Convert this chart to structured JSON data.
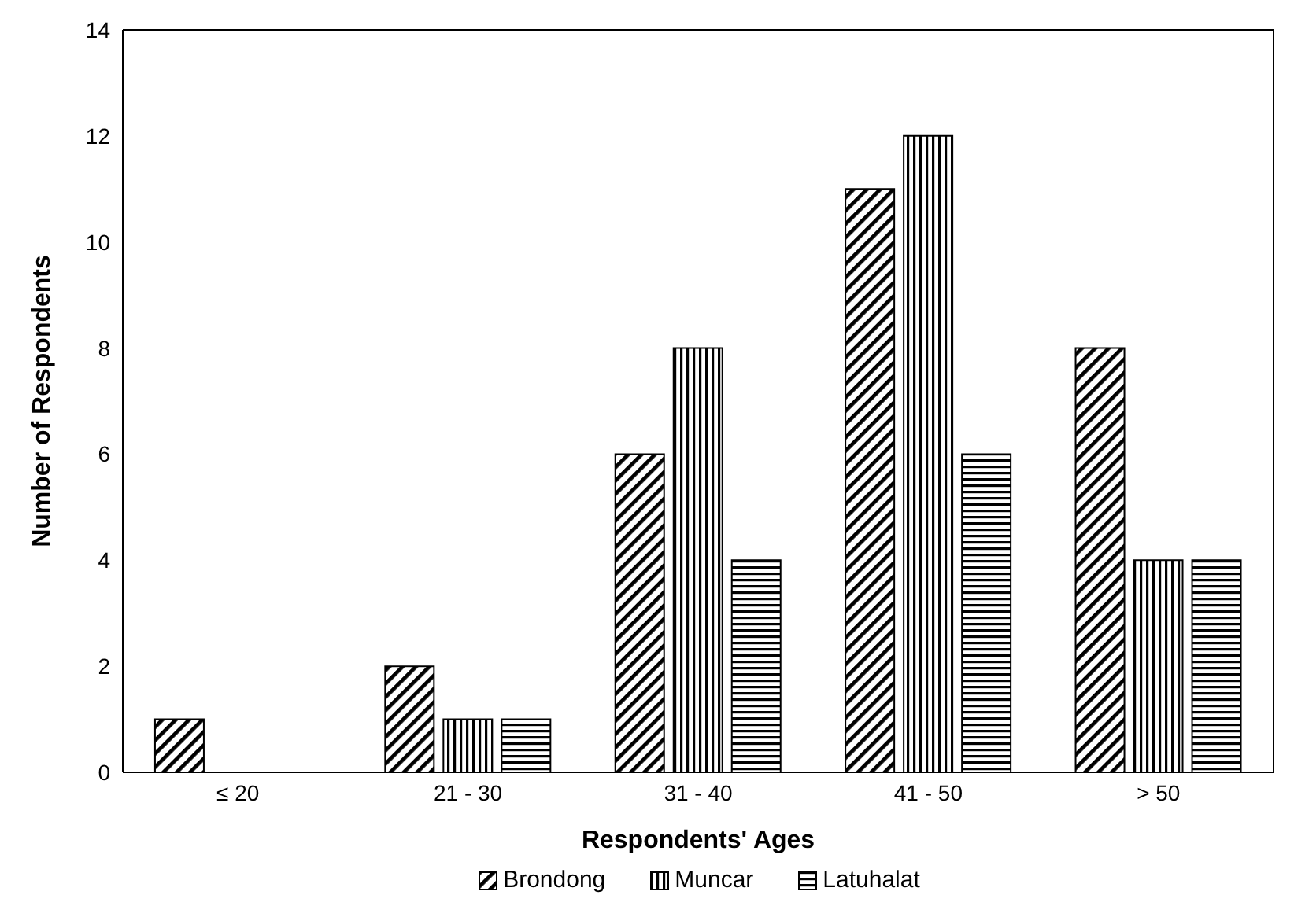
{
  "chart_data": {
    "type": "bar",
    "xlabel": "Respondents' Ages",
    "ylabel": "Number of Respondents",
    "categories": [
      "≤ 20",
      "21 - 30",
      "31 - 40",
      "41 - 50",
      "> 50"
    ],
    "series": [
      {
        "name": "Brondong",
        "color": "#000000",
        "values": [
          1,
          2,
          6,
          11,
          8
        ]
      },
      {
        "name": "Muncar",
        "color": "#000000",
        "values": [
          0,
          1,
          8,
          12,
          4
        ]
      },
      {
        "name": "Latuhalat",
        "color": "#000000",
        "values": [
          0,
          1,
          4,
          6,
          4
        ]
      }
    ],
    "ylim": [
      0,
      14
    ],
    "yticks": [
      0,
      2,
      4,
      6,
      8,
      10,
      12,
      14
    ],
    "legend": "bottom"
  }
}
